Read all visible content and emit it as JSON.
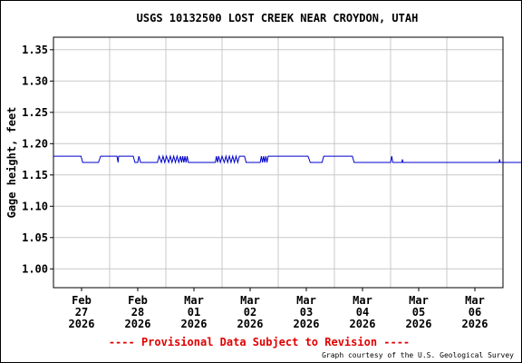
{
  "chart_data": {
    "type": "line",
    "title": "USGS 10132500 LOST CREEK NEAR CROYDON, UTAH",
    "ylabel": "Gage height, feet",
    "xlabel": "",
    "ylim": [
      0.97,
      1.37
    ],
    "yticks": [
      1.0,
      1.05,
      1.1,
      1.15,
      1.2,
      1.25,
      1.3,
      1.35
    ],
    "ytick_labels": [
      "1.00",
      "1.05",
      "1.10",
      "1.15",
      "1.20",
      "1.25",
      "1.30",
      "1.35"
    ],
    "xlim_days": [
      0,
      8
    ],
    "xticks": [
      {
        "day": 0.5,
        "lines": [
          "Feb",
          "27",
          "2026"
        ]
      },
      {
        "day": 1.5,
        "lines": [
          "Feb",
          "28",
          "2026"
        ]
      },
      {
        "day": 2.5,
        "lines": [
          "Mar",
          "01",
          "2026"
        ]
      },
      {
        "day": 3.5,
        "lines": [
          "Mar",
          "02",
          "2026"
        ]
      },
      {
        "day": 4.5,
        "lines": [
          "Mar",
          "03",
          "2026"
        ]
      },
      {
        "day": 5.5,
        "lines": [
          "Mar",
          "04",
          "2026"
        ]
      },
      {
        "day": 6.5,
        "lines": [
          "Mar",
          "05",
          "2026"
        ]
      },
      {
        "day": 7.5,
        "lines": [
          "Mar",
          "06",
          "2026"
        ]
      }
    ],
    "grid": true,
    "line_color": "#0000cc",
    "series": [
      {
        "name": "",
        "points": [
          [
            0.0,
            1.18
          ],
          [
            0.49,
            1.18
          ],
          [
            0.52,
            1.17
          ],
          [
            0.8,
            1.17
          ],
          [
            0.84,
            1.18
          ],
          [
            1.13,
            1.18
          ],
          [
            1.15,
            1.17
          ],
          [
            1.16,
            1.18
          ],
          [
            1.42,
            1.18
          ],
          [
            1.45,
            1.17
          ],
          [
            1.5,
            1.17
          ],
          [
            1.52,
            1.18
          ],
          [
            1.55,
            1.17
          ],
          [
            1.85,
            1.17
          ],
          [
            1.88,
            1.18
          ],
          [
            1.92,
            1.17
          ],
          [
            1.95,
            1.18
          ],
          [
            1.98,
            1.17
          ],
          [
            2.01,
            1.18
          ],
          [
            2.05,
            1.17
          ],
          [
            2.08,
            1.18
          ],
          [
            2.11,
            1.17
          ],
          [
            2.14,
            1.18
          ],
          [
            2.17,
            1.17
          ],
          [
            2.2,
            1.18
          ],
          [
            2.23,
            1.17
          ],
          [
            2.26,
            1.18
          ],
          [
            2.28,
            1.17
          ],
          [
            2.3,
            1.18
          ],
          [
            2.32,
            1.17
          ],
          [
            2.34,
            1.18
          ],
          [
            2.36,
            1.17
          ],
          [
            2.38,
            1.18
          ],
          [
            2.4,
            1.17
          ],
          [
            2.42,
            1.17
          ],
          [
            2.88,
            1.17
          ],
          [
            2.9,
            1.18
          ],
          [
            2.92,
            1.17
          ],
          [
            2.94,
            1.18
          ],
          [
            2.97,
            1.17
          ],
          [
            3.0,
            1.18
          ],
          [
            3.04,
            1.17
          ],
          [
            3.07,
            1.18
          ],
          [
            3.1,
            1.17
          ],
          [
            3.13,
            1.18
          ],
          [
            3.16,
            1.17
          ],
          [
            3.19,
            1.18
          ],
          [
            3.22,
            1.17
          ],
          [
            3.25,
            1.18
          ],
          [
            3.28,
            1.17
          ],
          [
            3.31,
            1.18
          ],
          [
            3.34,
            1.18
          ],
          [
            3.4,
            1.18
          ],
          [
            3.43,
            1.17
          ],
          [
            3.68,
            1.17
          ],
          [
            3.7,
            1.18
          ],
          [
            3.72,
            1.17
          ],
          [
            3.74,
            1.18
          ],
          [
            3.76,
            1.17
          ],
          [
            3.78,
            1.18
          ],
          [
            3.8,
            1.17
          ],
          [
            3.82,
            1.18
          ],
          [
            4.53,
            1.18
          ],
          [
            4.57,
            1.17
          ],
          [
            4.78,
            1.17
          ],
          [
            4.81,
            1.18
          ],
          [
            5.32,
            1.18
          ],
          [
            5.35,
            1.17
          ],
          [
            6.0,
            1.17
          ],
          [
            6.02,
            1.18
          ],
          [
            6.04,
            1.17
          ],
          [
            6.2,
            1.17
          ],
          [
            6.21,
            1.175
          ],
          [
            6.22,
            1.17
          ],
          [
            7.93,
            1.17
          ],
          [
            7.94,
            1.175
          ],
          [
            7.95,
            1.17
          ],
          [
            8.35,
            1.17
          ]
        ]
      }
    ],
    "provisional_note": "---- Provisional Data Subject to Revision ----",
    "credit": "Graph courtesy of the U.S. Geological Survey"
  }
}
